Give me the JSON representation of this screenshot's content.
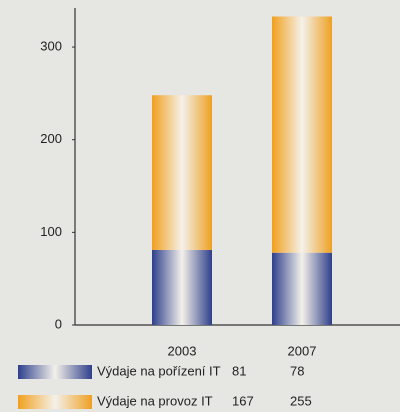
{
  "chart_data": {
    "type": "stacked_bar",
    "categories": [
      "2003",
      "2007"
    ],
    "series": [
      {
        "name": "Výdaje na pořízení IT",
        "color": "#2e3f8c",
        "values": [
          81,
          78
        ]
      },
      {
        "name": "Výdaje na provoz IT",
        "color": "#f0a020",
        "values": [
          167,
          255
        ]
      }
    ],
    "ylim": [
      0,
      340
    ],
    "yticks": [
      0,
      100,
      200,
      300
    ],
    "grid": false
  }
}
